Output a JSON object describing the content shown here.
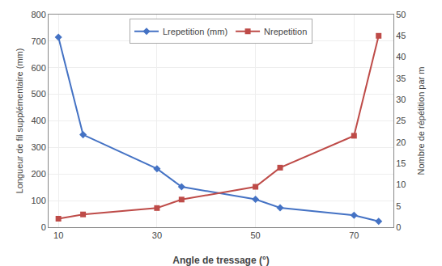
{
  "chart_data": {
    "type": "line",
    "x": [
      10,
      15,
      30,
      35,
      50,
      55,
      70,
      75
    ],
    "xlabel": "Angle de tressage (°)",
    "ylabel": "Longueur de fil supplémentaire (mm)",
    "y2label": "Nombre de répétition par m",
    "series": [
      {
        "name": "Lrepetition (mm)",
        "color": "#4472C4",
        "marker": "diamond",
        "values": [
          715,
          348,
          220,
          152,
          105,
          73,
          45,
          22
        ]
      },
      {
        "name": "Nrepetition",
        "color": "#BE4B48",
        "marker": "square",
        "axis": "y2",
        "values": [
          2,
          3,
          4.5,
          6.5,
          9.5,
          14,
          21.5,
          45
        ]
      }
    ],
    "xlim": [
      8,
      78
    ],
    "xticks": [
      10,
      30,
      50,
      70
    ],
    "ylim": [
      0,
      800
    ],
    "yticks": [
      0,
      100,
      200,
      300,
      400,
      500,
      600,
      700,
      800
    ],
    "y2lim": [
      0,
      50
    ],
    "y2ticks": [
      0,
      5,
      10,
      15,
      20,
      25,
      30,
      35,
      40,
      45,
      50
    ],
    "grid": true,
    "legend": "top"
  }
}
